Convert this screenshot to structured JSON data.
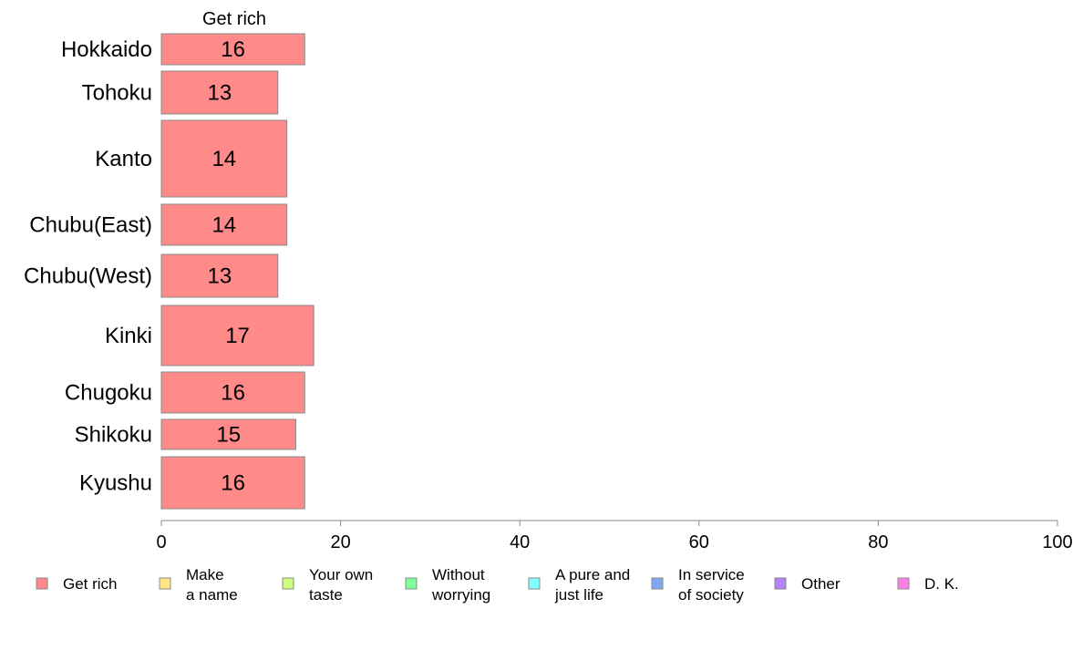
{
  "chart_data": {
    "type": "bar",
    "orientation": "horizontal",
    "column_title": "Get rich",
    "categories": [
      "Hokkaido",
      "Tohoku",
      "Kanto",
      "Chubu(East)",
      "Chubu(West)",
      "Kinki",
      "Chugoku",
      "Shikoku",
      "Kyushu"
    ],
    "series": [
      {
        "name": "Get rich",
        "color": "#ff8a8a",
        "values": [
          16,
          13,
          14,
          14,
          13,
          17,
          16,
          15,
          16
        ]
      }
    ],
    "xlim": [
      0,
      100
    ],
    "xticks": [
      0,
      20,
      40,
      60,
      80,
      100
    ],
    "grid": false,
    "legend_position": "bottom",
    "legend": [
      {
        "lines": [
          "Get rich"
        ],
        "color": "#ff8a8a"
      },
      {
        "lines": [
          "Make",
          "a name"
        ],
        "color": "#ffe680"
      },
      {
        "lines": [
          "Your own",
          "taste"
        ],
        "color": "#ccff80"
      },
      {
        "lines": [
          "Without",
          "worrying"
        ],
        "color": "#80ff99"
      },
      {
        "lines": [
          "A pure and",
          "just life"
        ],
        "color": "#80ffff"
      },
      {
        "lines": [
          "In service",
          "of society"
        ],
        "color": "#80a8f0"
      },
      {
        "lines": [
          "Other"
        ],
        "color": "#b380ff"
      },
      {
        "lines": [
          "D. K."
        ],
        "color": "#ff80e6"
      }
    ]
  }
}
